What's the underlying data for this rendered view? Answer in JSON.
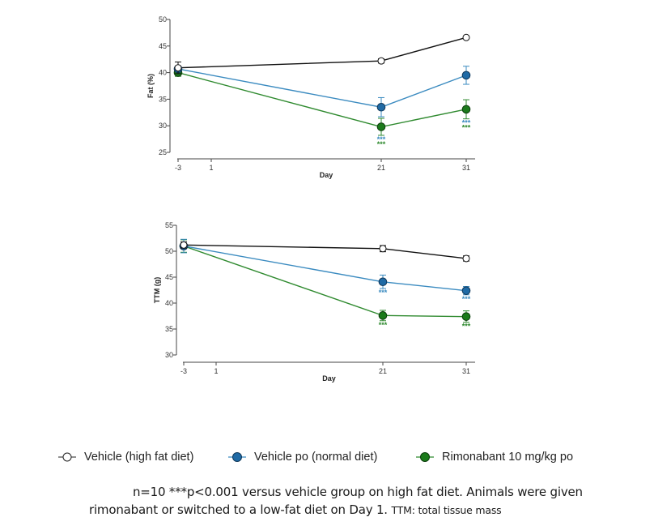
{
  "chart_data": [
    {
      "type": "line",
      "title": "",
      "xlabel": "Day",
      "ylabel": "Fat (%)",
      "x": [
        -3,
        21,
        31
      ],
      "xticks": [
        -3,
        1,
        21,
        31
      ],
      "xtick_labels": [
        "-3",
        "1",
        "21",
        "31"
      ],
      "yticks": [
        25,
        30,
        35,
        40,
        45,
        50
      ],
      "ytick_labels": [
        "25",
        "30",
        "35",
        "40",
        "45",
        "50"
      ],
      "ylim": [
        25,
        50
      ],
      "grid": false,
      "series": [
        {
          "name": "Vehicle (high fat diet)",
          "key": "hfd",
          "values": [
            40.9,
            42.2,
            46.6
          ],
          "errors": [
            1.1,
            0.4,
            0.2
          ],
          "significance": [
            "",
            "",
            ""
          ]
        },
        {
          "name": "Vehicle po (normal diet)",
          "key": "normal",
          "values": [
            40.7,
            33.5,
            39.5
          ],
          "errors": [
            0.5,
            1.8,
            1.7
          ],
          "significance": [
            "",
            "***",
            "***"
          ]
        },
        {
          "name": "Rimonabant 10 mg/kg po",
          "key": "rim",
          "values": [
            40.0,
            29.8,
            33.1
          ],
          "errors": [
            0.7,
            1.6,
            1.8
          ],
          "significance": [
            "",
            "***",
            "***"
          ]
        }
      ]
    },
    {
      "type": "line",
      "title": "",
      "xlabel": "Day",
      "ylabel": "TTM (g)",
      "x": [
        -3,
        21,
        31
      ],
      "xticks": [
        -3,
        1,
        21,
        31
      ],
      "xtick_labels": [
        "-3",
        "1",
        "21",
        "31"
      ],
      "yticks": [
        30,
        35,
        40,
        45,
        50,
        55
      ],
      "ytick_labels": [
        "30",
        "35",
        "40",
        "45",
        "50",
        "55"
      ],
      "ylim": [
        30,
        55
      ],
      "grid": false,
      "series": [
        {
          "name": "Vehicle (high fat diet)",
          "key": "hfd",
          "values": [
            51.2,
            50.5,
            48.6
          ],
          "errors": [
            0.6,
            0.6,
            0.5
          ],
          "significance": [
            "",
            "",
            ""
          ]
        },
        {
          "name": "Vehicle po (normal diet)",
          "key": "normal",
          "values": [
            51.0,
            44.1,
            42.4
          ],
          "errors": [
            1.3,
            1.3,
            0.8
          ],
          "significance": [
            "",
            "***",
            "***"
          ]
        },
        {
          "name": "Rimonabant 10 mg/kg po",
          "key": "rim",
          "values": [
            51.0,
            37.6,
            37.4
          ],
          "errors": [
            1.2,
            1.0,
            1.1
          ],
          "significance": [
            "",
            "***",
            "***"
          ]
        }
      ]
    }
  ],
  "colors": {
    "hfd_line": "#111111",
    "hfd_marker_fill": "#ffffff",
    "normal_line": "#3b8bc0",
    "normal_marker_fill": "#1f6aa5",
    "normal_marker_edge": "#10385a",
    "rim_line": "#2f8a2f",
    "rim_marker_fill": "#1b7a1b",
    "rim_marker_edge": "#0c3d0c",
    "axis": "#444444"
  },
  "legend": {
    "placement": "bottom",
    "items": [
      {
        "label": "Vehicle (high fat diet)",
        "icon": "open-circle-marker"
      },
      {
        "label": "Vehicle po (normal diet)",
        "icon": "blue-filled-circle-marker"
      },
      {
        "label": "Rimonabant 10 mg/kg po",
        "icon": "green-filled-circle-marker"
      }
    ]
  },
  "caption": {
    "line1": "n=10 ***p<0.001 versus vehicle group on high fat diet. Animals were given",
    "line2": "rimonabant or switched to a low-fat diet on Day 1.",
    "line2_small": "TTM: total tissue mass"
  }
}
